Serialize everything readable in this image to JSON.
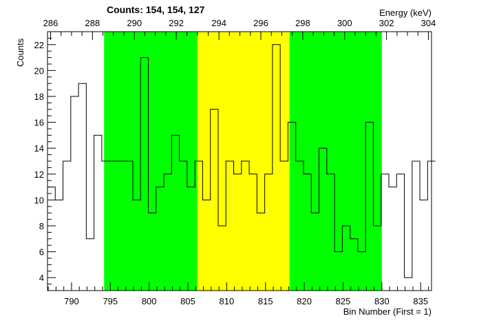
{
  "chart_data": {
    "type": "histogram-step",
    "title": "Counts:   154,   154,   127",
    "xlabel": "Bin Number (First = 1)",
    "ylabel": "Counts",
    "top_axis_label": "Energy (keV)",
    "xlim": [
      786.9,
      836.4
    ],
    "ylim": [
      3.0,
      23.0
    ],
    "x_ticks": [
      790,
      795,
      800,
      805,
      810,
      815,
      820,
      825,
      830,
      835
    ],
    "y_ticks": [
      4,
      6,
      8,
      10,
      12,
      14,
      16,
      18,
      20,
      22
    ],
    "top_ticks": [
      {
        "label": "286",
        "bin": 787.3
      },
      {
        "label": "288",
        "bin": 792.7
      },
      {
        "label": "290",
        "bin": 798.1
      },
      {
        "label": "292",
        "bin": 803.5
      },
      {
        "label": "294",
        "bin": 809.0
      },
      {
        "label": "296",
        "bin": 814.4
      },
      {
        "label": "298",
        "bin": 819.8
      },
      {
        "label": "300",
        "bin": 825.2
      },
      {
        "label": "302",
        "bin": 830.6
      },
      {
        "label": "304",
        "bin": 836.0
      }
    ],
    "regions": [
      {
        "name": "left-background",
        "from": 794.2,
        "to": 806.2,
        "color": "#00ff00"
      },
      {
        "name": "peak",
        "from": 806.2,
        "to": 818.1,
        "color": "#ffff00"
      },
      {
        "name": "right-background",
        "from": 818.1,
        "to": 830.0,
        "color": "#00ff00"
      }
    ],
    "bins": {
      "start": 786.9,
      "width": 1.0,
      "values": [
        11,
        10,
        13,
        18,
        19,
        7,
        15,
        13,
        13,
        13,
        13,
        10,
        21,
        9,
        11,
        12,
        15,
        13,
        11,
        13,
        10,
        17,
        8,
        13,
        12,
        13,
        12,
        9,
        12,
        22,
        13,
        16,
        13,
        12,
        9,
        14,
        12,
        6,
        8,
        7,
        6,
        16,
        8,
        12,
        11,
        12,
        4,
        13,
        10,
        13
      ]
    }
  }
}
